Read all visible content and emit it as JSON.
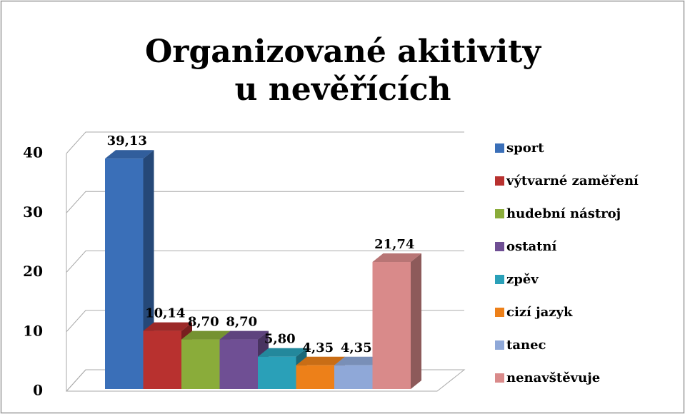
{
  "chart_data": {
    "type": "bar3d",
    "title": "Organizované akitivity u nevěřících",
    "ylim": [
      0,
      40
    ],
    "yticks": [
      0,
      10,
      20,
      30,
      40
    ],
    "grid": true,
    "legend": "right",
    "series": [
      {
        "name": "sport",
        "color": "#3a6fb8",
        "values": [
          39.13
        ],
        "value_labels": [
          "39,13"
        ]
      },
      {
        "name": "výtvarné zaměření",
        "color": "#b8312f",
        "values": [
          10.14
        ],
        "value_labels": [
          "10,14"
        ]
      },
      {
        "name": "hudební nástroj",
        "color": "#8aac3a",
        "values": [
          8.7
        ],
        "value_labels": [
          "8,70"
        ]
      },
      {
        "name": "ostatní",
        "color": "#6f4f94",
        "values": [
          8.7
        ],
        "value_labels": [
          "8,70"
        ]
      },
      {
        "name": "zpěv",
        "color": "#2aa0b8",
        "values": [
          5.8
        ],
        "value_labels": [
          "5,80"
        ]
      },
      {
        "name": "cizí jazyk",
        "color": "#ed8019",
        "values": [
          4.35
        ],
        "value_labels": [
          "4,35"
        ]
      },
      {
        "name": "tanec",
        "color": "#8fa8d8",
        "values": [
          4.35
        ],
        "value_labels": [
          "4,35"
        ]
      },
      {
        "name": "nenavštěvuje",
        "color": "#d98a8a",
        "values": [
          21.74
        ],
        "value_labels": [
          "21,74"
        ]
      }
    ]
  }
}
